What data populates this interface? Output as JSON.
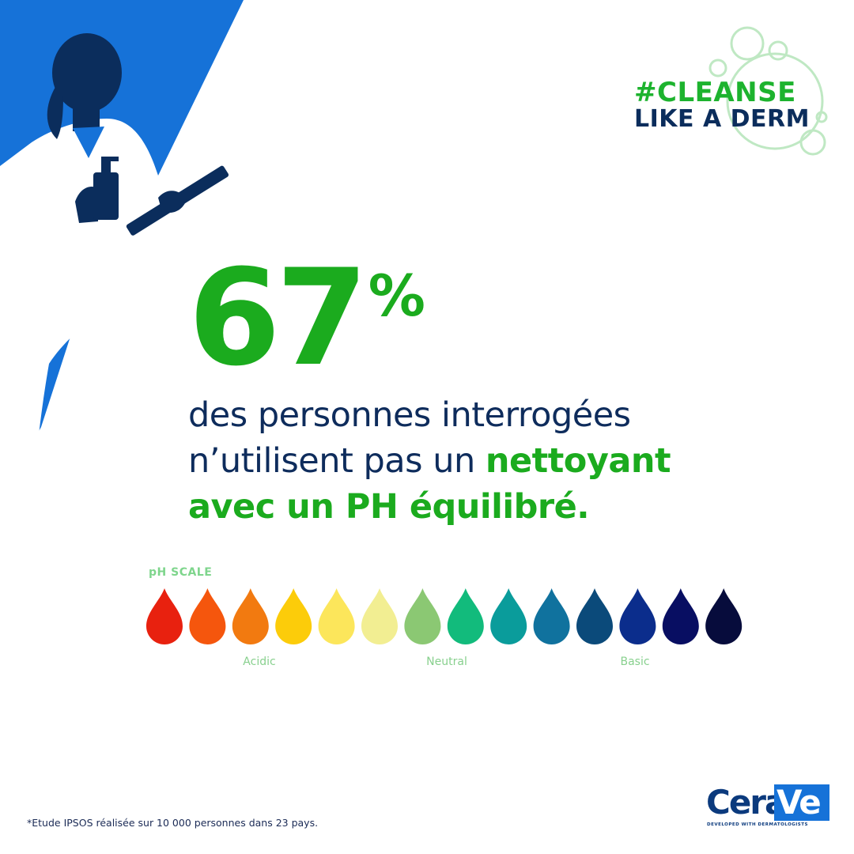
{
  "hashtag": {
    "line1": "#CLEANSE",
    "line2": "LIKE A DERM"
  },
  "stat": {
    "number": "67",
    "percent_sign": "%"
  },
  "claim": {
    "part1": "des personnes interrogées n’utilisent pas un ",
    "highlight": "nettoyant avec un PH équilibré."
  },
  "ph_scale": {
    "title": "pH SCALE",
    "labels": {
      "acidic": "Acidic",
      "neutral": "Neutral",
      "basic": "Basic"
    },
    "drop_colors": [
      "#e8210f",
      "#f5560d",
      "#f27a10",
      "#fccc0a",
      "#fce65b",
      "#f2ee92",
      "#8bc873",
      "#12bb7c",
      "#0a9c9b",
      "#10729e",
      "#0b4a7a",
      "#0b2d8c",
      "#080e62",
      "#070c3c"
    ]
  },
  "footnote": "*Etude IPSOS réalisée sur 10 000  personnes dans 23 pays.",
  "logo": {
    "cera": "Cera",
    "ve": "Ve",
    "tagline": "DEVELOPED WITH DERMATOLOGISTS"
  },
  "icons": [
    "pharmacist-silhouette",
    "bubbles-icon",
    "ph-drop-icon"
  ],
  "colors": {
    "brand_blue": "#1672d8",
    "navy": "#0b2d5c",
    "green": "#1bab1e",
    "bubble_green": "#bfe8c3"
  }
}
